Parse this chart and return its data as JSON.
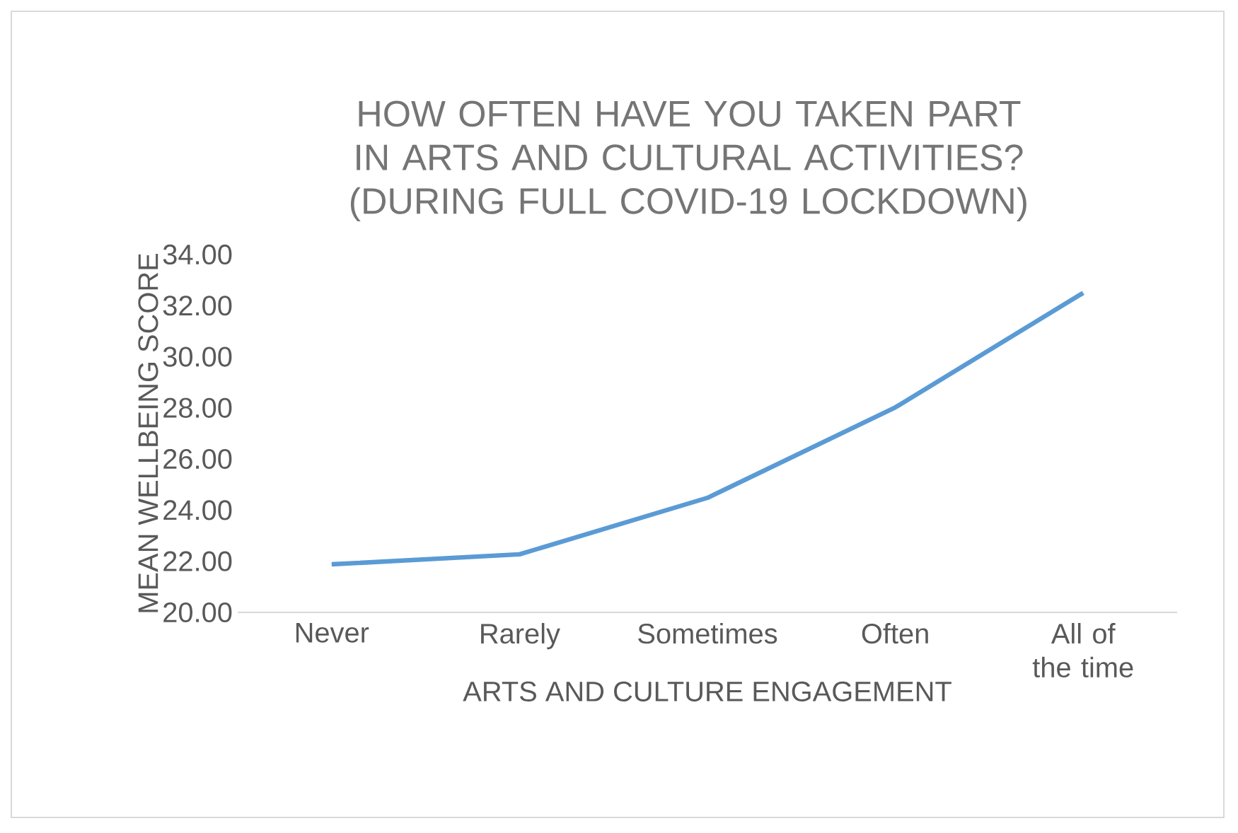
{
  "chart_data": {
    "type": "line",
    "title": "HOW OFTEN HAVE YOU TAKEN PART IN ARTS AND CULTURAL ACTIVITIES?",
    "subtitle": "(DURING FULL COVID-19 LOCKDOWN)",
    "xlabel": "ARTS AND CULTURE ENGAGEMENT",
    "ylabel": "MEAN WELLBEING SCORE",
    "categories": [
      "Never",
      "Rarely",
      "Sometimes",
      "Often",
      "All of the time"
    ],
    "series": [
      {
        "color": "#5b9bd5",
        "values": [
          21.88,
          22.27,
          24.48,
          28.02,
          32.5
        ]
      }
    ],
    "ylim": [
      20,
      34
    ],
    "yticks": [
      {
        "value": 20,
        "label": "20.00"
      },
      {
        "value": 22,
        "label": "22.00"
      },
      {
        "value": 24,
        "label": "24.00"
      },
      {
        "value": 26,
        "label": "26.00"
      },
      {
        "value": 28,
        "label": "28.00"
      },
      {
        "value": 30,
        "label": "30.00"
      },
      {
        "value": 32,
        "label": "32.00"
      },
      {
        "value": 34,
        "label": "34.00"
      }
    ]
  }
}
